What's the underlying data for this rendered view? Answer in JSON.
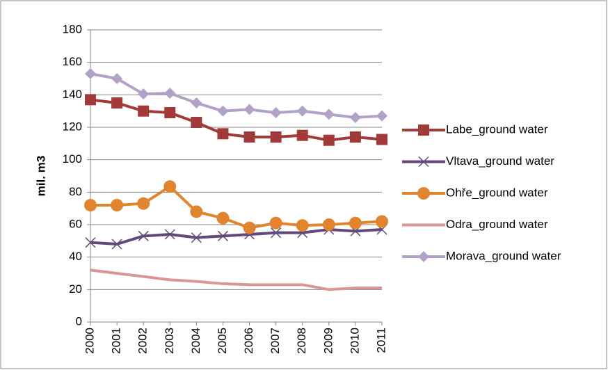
{
  "chart_data": {
    "type": "line",
    "y_label": "mil. m3",
    "categories": [
      "2000",
      "2001",
      "2002",
      "2003",
      "2004",
      "2005",
      "2006",
      "2007",
      "2008",
      "2009",
      "2010",
      "2011"
    ],
    "series": [
      {
        "name": "Labe_ground water",
        "color": "#a33a3a",
        "marker": "square",
        "values": [
          137,
          135,
          130,
          129,
          123,
          116,
          114,
          114,
          115,
          112,
          114,
          112.5
        ]
      },
      {
        "name": "Vltava_ground water",
        "color": "#604a7b",
        "marker": "x",
        "values": [
          49,
          48,
          53,
          54,
          52,
          53,
          54,
          55,
          55,
          57,
          56,
          57
        ]
      },
      {
        "name": "Ohře_ground water",
        "color": "#e0852e",
        "marker": "circle",
        "values": [
          72,
          72,
          73,
          83.5,
          68,
          64,
          58,
          61,
          59.5,
          60,
          61,
          62
        ]
      },
      {
        "name": "Odra_ground water",
        "color": "#d99694",
        "marker": "none",
        "values": [
          32,
          30,
          28,
          26,
          25,
          23.6,
          23,
          23,
          23,
          20,
          21,
          21
        ]
      },
      {
        "name": "Morava_ground water",
        "color": "#b3a2c7",
        "marker": "diamond",
        "values": [
          153,
          150,
          140.5,
          141,
          135,
          130,
          131,
          129,
          130,
          128,
          126,
          127
        ]
      }
    ],
    "ylim": [
      0,
      180
    ],
    "yticks": [
      0,
      20,
      40,
      60,
      80,
      100,
      120,
      140,
      160,
      180
    ],
    "grid": true,
    "legend": "right"
  }
}
